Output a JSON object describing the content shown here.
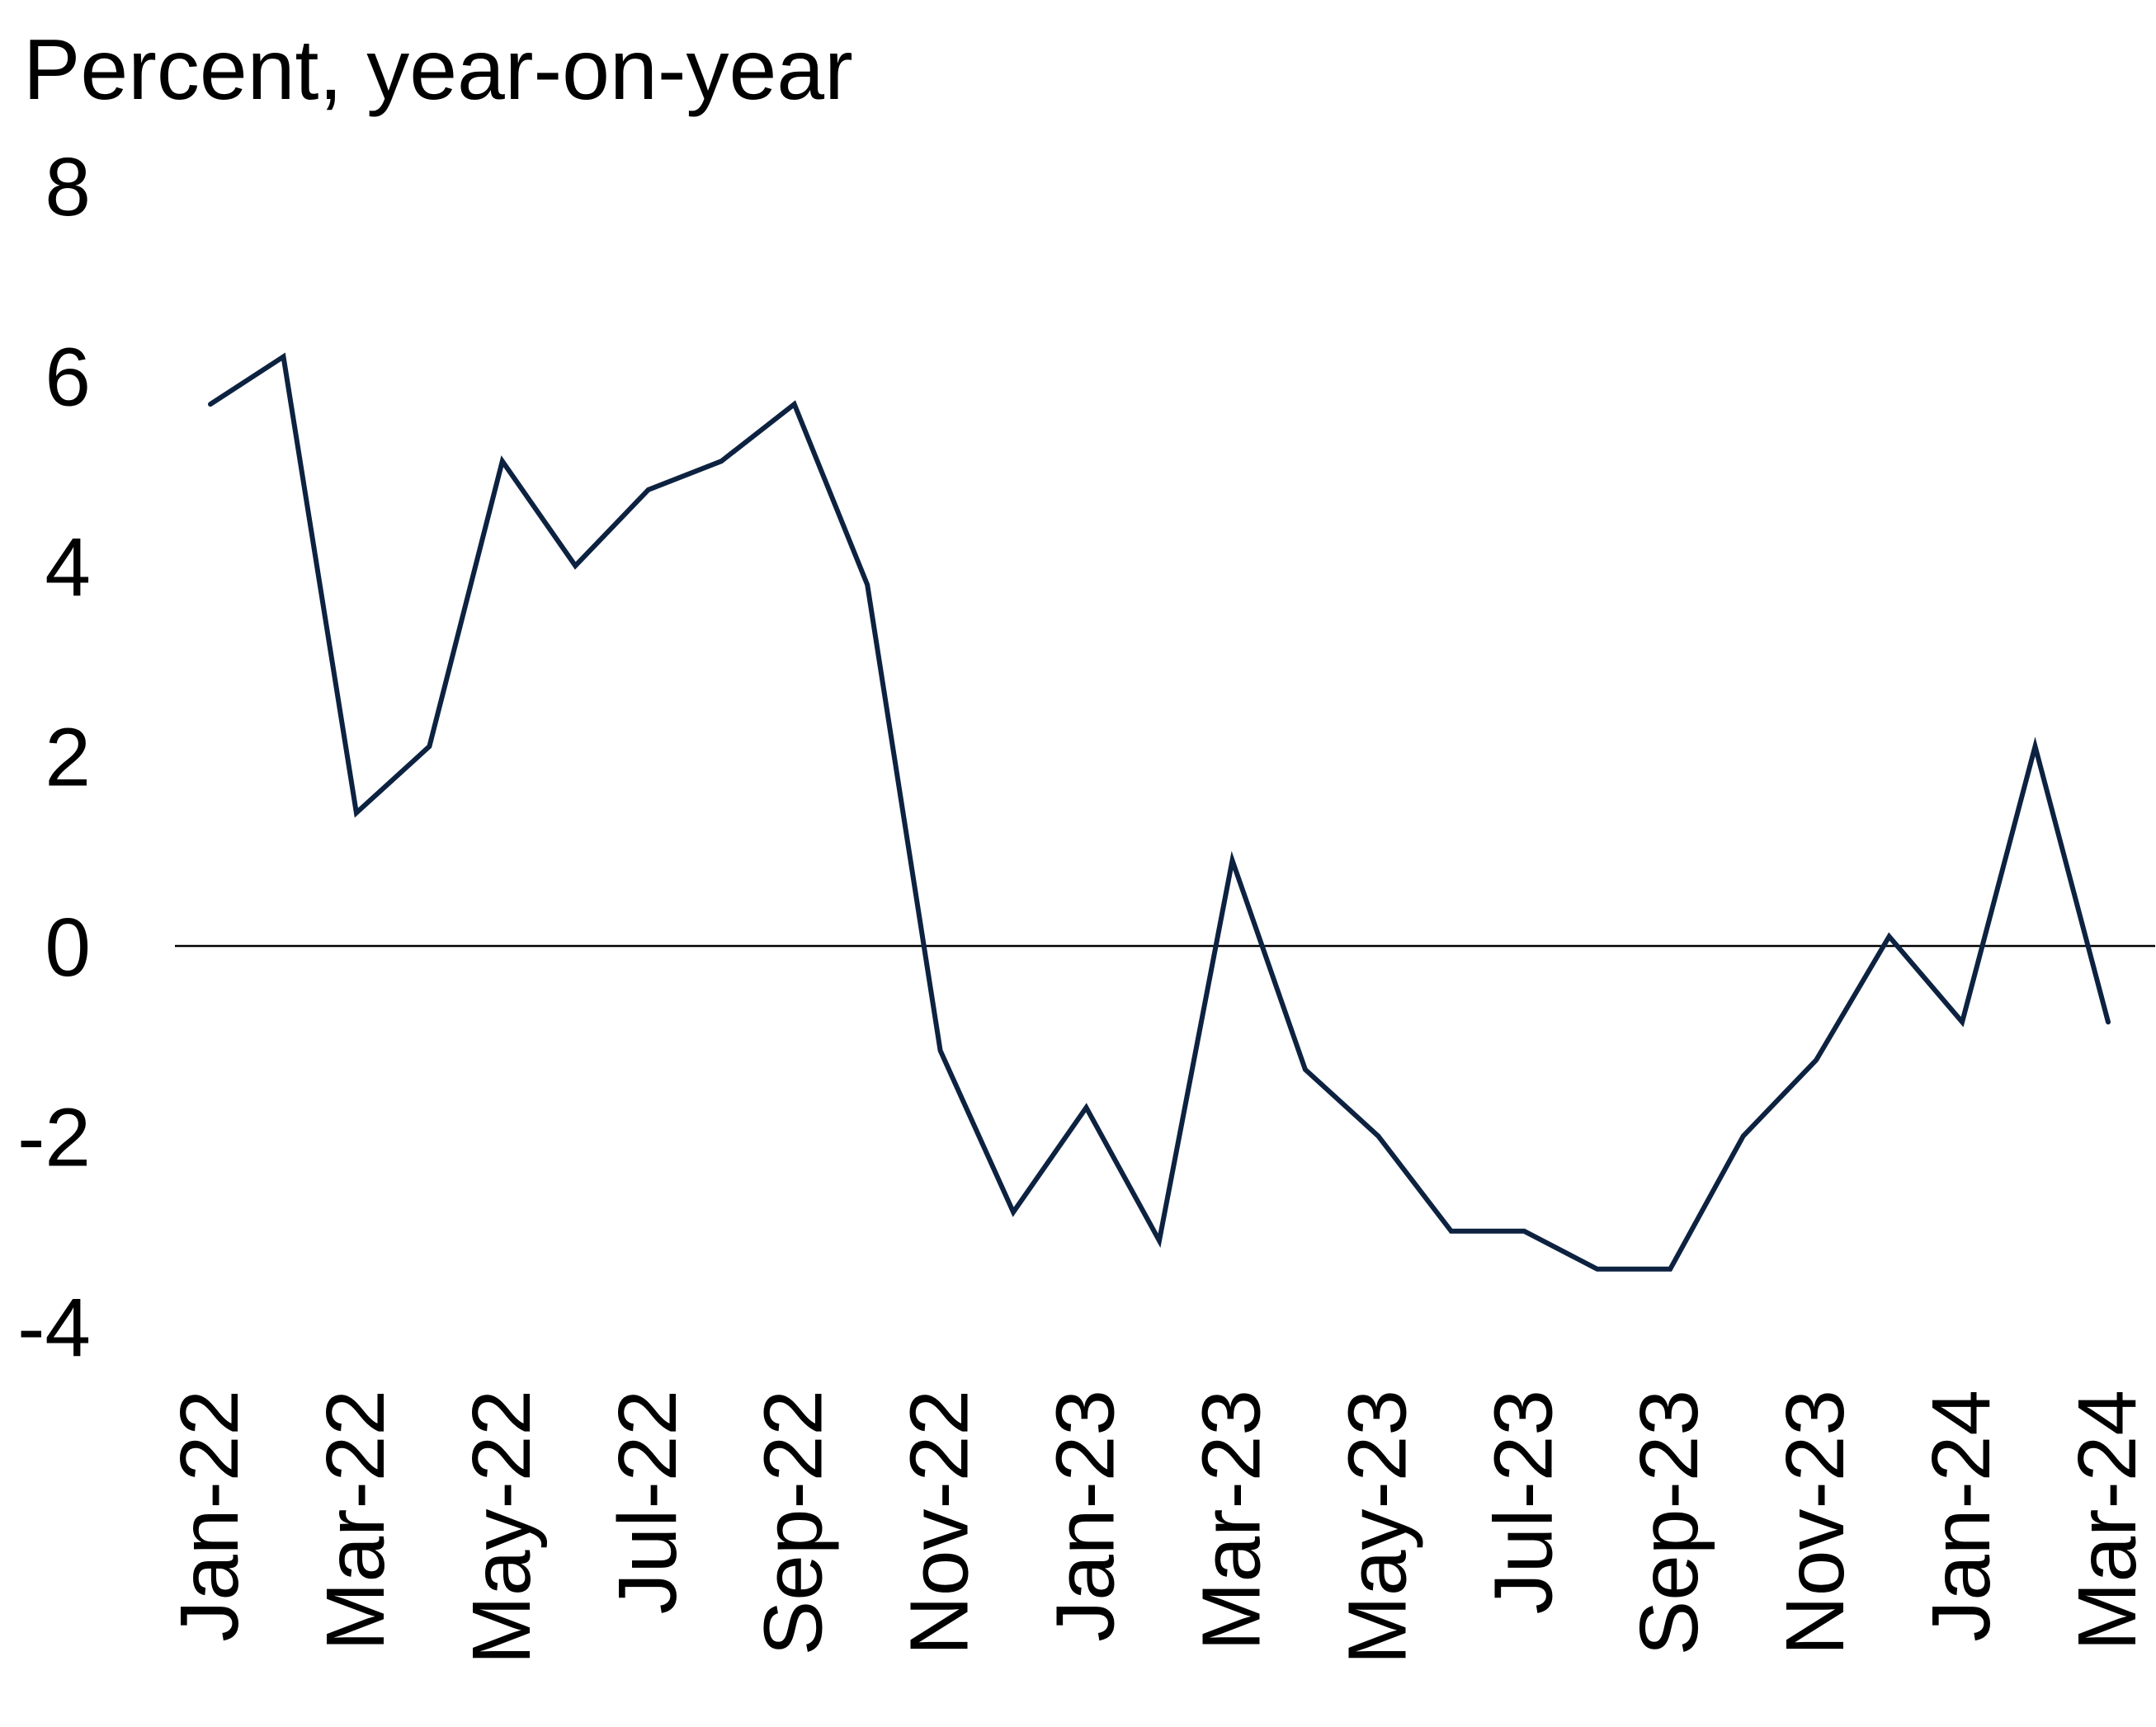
{
  "chart_data": {
    "type": "line",
    "title": "",
    "ylabel": "Percent, year-on-year",
    "xlabel": "",
    "ylim": [
      -4,
      8
    ],
    "yticks": [
      -4,
      -2,
      0,
      2,
      4,
      6,
      8
    ],
    "ytick_labels": [
      "-4",
      "-2",
      "0",
      "2",
      "4",
      "6",
      "8"
    ],
    "x": [
      "Jan-22",
      "Feb-22",
      "Mar-22",
      "Apr-22",
      "May-22",
      "Jun-22",
      "Jul-22",
      "Aug-22",
      "Sep-22",
      "Oct-22",
      "Nov-22",
      "Dec-22",
      "Jan-23",
      "Feb-23",
      "Mar-23",
      "Apr-23",
      "May-23",
      "Jun-23",
      "Jul-23",
      "Aug-23",
      "Sep-23",
      "Oct-23",
      "Nov-23",
      "Dec-23",
      "Jan-24",
      "Feb-24",
      "Mar-24"
    ],
    "xtick_labels": [
      "Jan-22",
      "Mar-22",
      "May-22",
      "Jul-22",
      "Sep-22",
      "Nov-22",
      "Jan-23",
      "Mar-23",
      "May-23",
      "Jul-23",
      "Sep-23",
      "Nov-23",
      "Jan-24",
      "Mar-24"
    ],
    "series": [
      {
        "values": [
          5.7,
          6.2,
          1.4,
          2.1,
          5.1,
          4.0,
          4.8,
          5.1,
          5.7,
          3.8,
          -1.1,
          -2.8,
          -1.7,
          -3.1,
          0.9,
          -1.3,
          -2.0,
          -3.0,
          -3.0,
          -3.4,
          -3.4,
          -2.0,
          -1.2,
          0.1,
          -0.8,
          2.1,
          -0.8
        ]
      }
    ],
    "zero_line": true,
    "grid": false,
    "colors": {
      "line": "#0d2240",
      "zero_line": "#000000"
    }
  }
}
